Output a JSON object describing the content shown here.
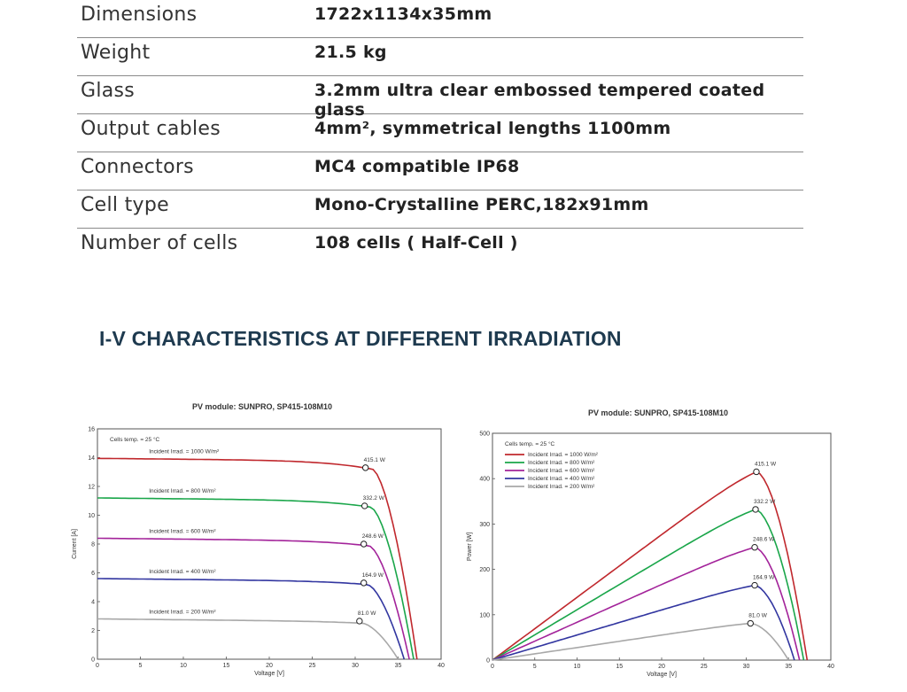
{
  "specs": [
    {
      "label": "Dimensions",
      "value": "1722x1134x35mm"
    },
    {
      "label": "Weight",
      "value": "21.5 kg"
    },
    {
      "label": "Glass",
      "value": "3.2mm ultra clear embossed tempered coated glass"
    },
    {
      "label": "Output cables",
      "value": "4mm², symmetrical lengths 1100mm"
    },
    {
      "label": "Connectors",
      "value": "MC4 compatible IP68"
    },
    {
      "label": "Cell type",
      "value": "Mono-Crystalline PERC,182x91mm"
    },
    {
      "label": "Number of cells",
      "value": "108 cells ( Half-Cell )"
    }
  ],
  "section_title": "I-V CHARACTERISTICS AT DIFFERENT IRRADIATION",
  "chart_data": [
    {
      "type": "line",
      "title": "PV module:  SUNPRO,  SP415-108M10",
      "xlabel": "Voltage [V]",
      "ylabel": "Current [A]",
      "xlim": [
        0,
        40
      ],
      "ylim": [
        0,
        16
      ],
      "x_ticks": [
        0,
        5,
        10,
        15,
        20,
        25,
        30,
        35,
        40
      ],
      "y_ticks": [
        0,
        2,
        4,
        6,
        8,
        10,
        12,
        14,
        16
      ],
      "note": "Cells temp. = 25 °C",
      "series": [
        {
          "name": "Incident Irrad. = 1000 W/m²",
          "color": "#c0282d",
          "isc": 13.95,
          "voc": 37.2,
          "knee": 32.0,
          "mpp": {
            "x": 31.2,
            "y": 13.3
          },
          "mpp_label": "415.1 W"
        },
        {
          "name": "Incident Irrad. = 800 W/m²",
          "color": "#1aa64a",
          "isc": 11.2,
          "voc": 36.8,
          "knee": 31.8,
          "mpp": {
            "x": 31.1,
            "y": 10.65
          },
          "mpp_label": "332.2 W"
        },
        {
          "name": "Incident Irrad. = 600 W/m²",
          "color": "#a3239a",
          "isc": 8.4,
          "voc": 36.3,
          "knee": 31.6,
          "mpp": {
            "x": 31.0,
            "y": 8.0
          },
          "mpp_label": "248.6 W"
        },
        {
          "name": "Incident Irrad. = 400 W/m²",
          "color": "#3236a0",
          "isc": 5.6,
          "voc": 35.7,
          "knee": 31.4,
          "mpp": {
            "x": 31.0,
            "y": 5.3
          },
          "mpp_label": "164.9 W"
        },
        {
          "name": "Incident Irrad. = 200 W/m²",
          "color": "#a8a8a8",
          "isc": 2.8,
          "voc": 35.0,
          "knee": 30.8,
          "mpp": {
            "x": 30.5,
            "y": 2.65
          },
          "mpp_label": "81.0 W"
        }
      ]
    },
    {
      "type": "line",
      "title": "PV module:  SUNPRO,  SP415-108M10",
      "xlabel": "Voltage [V]",
      "ylabel": "Power [W]",
      "xlim": [
        0,
        40
      ],
      "ylim": [
        0,
        500
      ],
      "x_ticks": [
        0,
        5,
        10,
        15,
        20,
        25,
        30,
        35,
        40
      ],
      "y_ticks": [
        0,
        100,
        200,
        300,
        400,
        500
      ],
      "note": "Cells temp. = 25 °C",
      "series": [
        {
          "name": "Incident Irrad. = 1000 W/m²",
          "color": "#c0282d",
          "mpp": {
            "x": 31.2,
            "y": 415.1
          },
          "voc": 37.2,
          "mpp_label": "415.1 W"
        },
        {
          "name": "Incident Irrad. = 800 W/m²",
          "color": "#1aa64a",
          "mpp": {
            "x": 31.1,
            "y": 332.2
          },
          "voc": 36.8,
          "mpp_label": "332.2 W"
        },
        {
          "name": "Incident Irrad. = 600 W/m²",
          "color": "#a3239a",
          "mpp": {
            "x": 31.0,
            "y": 248.6
          },
          "voc": 36.3,
          "mpp_label": "248.6 W"
        },
        {
          "name": "Incident Irrad. = 400 W/m²",
          "color": "#3236a0",
          "mpp": {
            "x": 31.0,
            "y": 164.9
          },
          "voc": 35.7,
          "mpp_label": "164.9 W"
        },
        {
          "name": "Incident Irrad. = 200 W/m²",
          "color": "#a8a8a8",
          "mpp": {
            "x": 30.5,
            "y": 81.0
          },
          "voc": 35.0,
          "mpp_label": "81.0 W"
        }
      ]
    }
  ]
}
